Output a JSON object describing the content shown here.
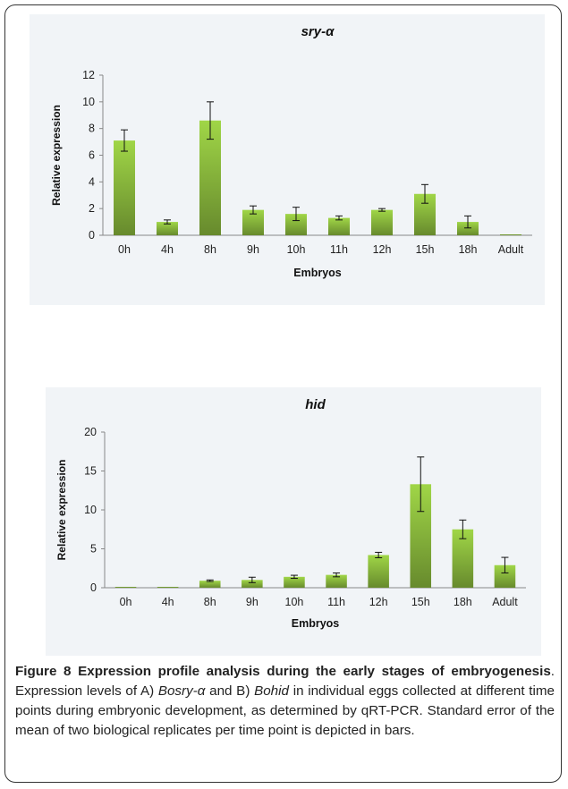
{
  "chart_data": [
    {
      "type": "bar",
      "title": "sry-α",
      "xlabel": "Embryos",
      "ylabel": "Relative expression",
      "categories": [
        "0h",
        "4h",
        "8h",
        "9h",
        "10h",
        "11h",
        "12h",
        "15h",
        "18h",
        "Adult"
      ],
      "values": [
        7.1,
        1.0,
        8.6,
        1.9,
        1.6,
        1.3,
        1.9,
        3.1,
        1.0,
        0
      ],
      "errors": [
        0.8,
        0.15,
        1.4,
        0.3,
        0.5,
        0.15,
        0.1,
        0.7,
        0.45,
        0
      ],
      "yticks": [
        0,
        2,
        4,
        6,
        8,
        10,
        12
      ],
      "ylim": [
        0,
        12
      ],
      "grid": false,
      "bar_color": "#8fbf3f"
    },
    {
      "type": "bar",
      "title": "hid",
      "xlabel": "Embryos",
      "ylabel": "Relative expression",
      "categories": [
        "0h",
        "4h",
        "8h",
        "9h",
        "10h",
        "11h",
        "12h",
        "15h",
        "18h",
        "Adult"
      ],
      "values": [
        0,
        0,
        0.9,
        1.0,
        1.4,
        1.65,
        4.2,
        13.3,
        7.5,
        2.9
      ],
      "errors": [
        0,
        0,
        0.1,
        0.35,
        0.2,
        0.25,
        0.35,
        3.5,
        1.2,
        1.0
      ],
      "yticks": [
        0,
        5,
        10,
        15,
        20
      ],
      "ylim": [
        0,
        20
      ],
      "grid": false,
      "bar_color": "#8fbf3f"
    }
  ],
  "caption": {
    "figure_label": "Figure 8 Expression profile analysis during the early stages of embryogenesis",
    "text_1": ". Expression levels of A) ",
    "gene_a": "Bosry-α",
    "text_2": " and B) ",
    "gene_b": "Bohid",
    "text_3": " in individual eggs collected at different time points during embryonic development, as determined by qRT-PCR. Standard error of the mean of two biological replicates per time point is depicted in bars."
  }
}
